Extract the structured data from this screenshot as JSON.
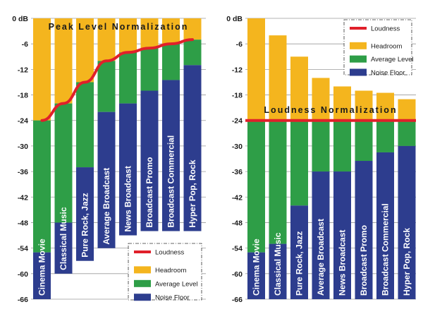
{
  "colors": {
    "headroom": "#F4B51E",
    "average": "#2E9E47",
    "noise": "#2D3D8E",
    "loudness": "#E0202A",
    "grid": "#9a9a9a"
  },
  "chart_data": [
    {
      "type": "bar",
      "stacking": "layered",
      "title": "Peak Level Normalization",
      "y_tick_labels": [
        "0 dB",
        "-6",
        "-12",
        "-18",
        "-24",
        "-30",
        "-36",
        "-42",
        "-48",
        "-54",
        "-60",
        "-66"
      ],
      "ylim": [
        -66,
        0
      ],
      "grid": "horizontal",
      "categories": [
        "Cinema Movie",
        "Classical Music",
        "Pure Rock, Jazz",
        "Average Broadcast",
        "News Broadcast",
        "Broadcast Promo",
        "Broadcast  Commercial",
        "Hyper Pop, Rock"
      ],
      "series": [
        {
          "name": "Headroom",
          "top": [
            0,
            0,
            0,
            0,
            0,
            0,
            0,
            0
          ]
        },
        {
          "name": "Average Level",
          "top": [
            -24,
            -20,
            -15,
            -10,
            -8,
            -7,
            -6,
            -5
          ]
        },
        {
          "name": "Noise Floor",
          "top": [
            -55,
            -48,
            -35,
            -22,
            -20,
            -17,
            -14.5,
            -11
          ],
          "bottom": [
            -66,
            -60,
            -57,
            -54,
            -51,
            -50,
            -50,
            -50
          ]
        }
      ],
      "loudness_curve": {
        "name": "Loudness",
        "values": [
          -24,
          -20,
          -15,
          -10,
          -8,
          -7,
          -6,
          -5
        ]
      },
      "legend": {
        "placement": "bottom-right",
        "items": [
          {
            "label": "Loudness",
            "kind": "line",
            "color": "#E0202A"
          },
          {
            "label": "Headroom",
            "kind": "box",
            "color": "#F4B51E"
          },
          {
            "label": "Average Level",
            "kind": "box",
            "color": "#2E9E47"
          },
          {
            "label": "Noise Floor",
            "kind": "box",
            "color": "#2D3D8E"
          }
        ]
      }
    },
    {
      "type": "bar",
      "stacking": "layered",
      "title": "Loudness Normalization",
      "y_tick_labels": [
        "0 dB",
        "-6",
        "-12",
        "-18",
        "-24",
        "-30",
        "-36",
        "-42",
        "-48",
        "-54",
        "-60",
        "-66"
      ],
      "ylim": [
        -66,
        0
      ],
      "grid": "horizontal",
      "categories": [
        "Cinema Movie",
        "Classical Music",
        "Pure Rock, Jazz",
        "Average Broadcast",
        "News Broadcast",
        "Broadcast Promo",
        "Broadcast  Commercial",
        "Hyper Pop, Rock"
      ],
      "series": [
        {
          "name": "Headroom",
          "top": [
            0,
            -4,
            -9,
            -14,
            -16,
            -17,
            -17.5,
            -19
          ]
        },
        {
          "name": "Average Level",
          "top": [
            -24,
            -24,
            -24,
            -24,
            -24,
            -24,
            -24,
            -24
          ]
        },
        {
          "name": "Noise Floor",
          "top": [
            -55,
            -53,
            -44,
            -36,
            -36,
            -33.5,
            -31.5,
            -30
          ],
          "bottom": [
            -66,
            -66,
            -66,
            -66,
            -66,
            -66,
            -66,
            -66
          ]
        }
      ],
      "loudness_line": {
        "name": "Loudness",
        "value": -24
      },
      "legend": {
        "placement": "top-right",
        "items": [
          {
            "label": "Loudness",
            "kind": "line",
            "color": "#E0202A"
          },
          {
            "label": "Headroom",
            "kind": "box",
            "color": "#F4B51E"
          },
          {
            "label": "Average Level",
            "kind": "box",
            "color": "#2E9E47"
          },
          {
            "label": "Noise Floor",
            "kind": "box",
            "color": "#2D3D8E"
          }
        ]
      }
    }
  ]
}
